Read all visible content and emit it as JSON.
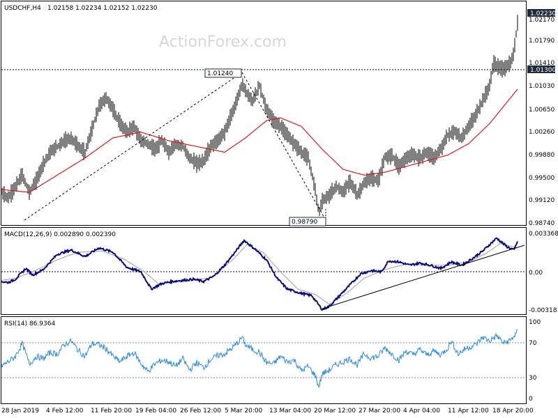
{
  "header": {
    "symbol": "USDCHF,H4",
    "ohlc": "1.02158 1.02234 1.02152 1.02230"
  },
  "watermark": "ActionForex.com",
  "colors": {
    "price": "#000000",
    "sma": "#d81b1b",
    "macd": "#0a0a78",
    "signal": "#a0a0a0",
    "rsi": "#2a8ad8",
    "level": "#1e2a3a"
  },
  "x_labels": [
    "28 Jan 2019",
    "4 Feb 12:00",
    "11 Feb 20:00",
    "19 Feb 04:00",
    "26 Feb 12:00",
    "5 Mar 20:00",
    "13 Mar 04:00",
    "20 Mar 12:00",
    "27 Mar 20:00",
    "4 Apr 04:00",
    "11 Apr 12:00",
    "18 Apr 20:00"
  ],
  "chart_data": [
    {
      "type": "line",
      "title": "USDCHF,H4",
      "y_ticks": [
        "1.02230",
        "1.02170",
        "1.01790",
        "1.01410",
        "1.01300",
        "1.01030",
        "1.00650",
        "1.00260",
        "0.99880",
        "0.99500",
        "0.99120",
        "0.98740"
      ],
      "ylim": [
        0.9874,
        1.0246
      ],
      "current_price": "1.02230",
      "horizontal_level": "1.01300",
      "annotations": [
        {
          "label": "1.01240",
          "value": 1.0124
        },
        {
          "label": "0.98790",
          "value": 0.9879
        }
      ],
      "price_anchors": [
        [
          0,
          0.9925
        ],
        [
          10,
          0.9915
        ],
        [
          20,
          0.9935
        ],
        [
          30,
          0.9955
        ],
        [
          40,
          0.9925
        ],
        [
          50,
          0.9945
        ],
        [
          60,
          0.9975
        ],
        [
          70,
          0.9995
        ],
        [
          80,
          1.0005
        ],
        [
          90,
          1.0015
        ],
        [
          100,
          1.002
        ],
        [
          110,
          1.0005
        ],
        [
          120,
          0.9995
        ],
        [
          130,
          1.0035
        ],
        [
          140,
          1.0075
        ],
        [
          150,
          1.009
        ],
        [
          160,
          1.007
        ],
        [
          170,
          1.0045
        ],
        [
          180,
          1.003
        ],
        [
          190,
          1.004
        ],
        [
          200,
          1.0015
        ],
        [
          210,
          1.001
        ],
        [
          220,
          1.0
        ],
        [
          230,
          1.0015
        ],
        [
          240,
          0.9995
        ],
        [
          250,
          1.001
        ],
        [
          260,
          1.0005
        ],
        [
          270,
          0.9985
        ],
        [
          280,
          0.9975
        ],
        [
          290,
          0.998
        ],
        [
          300,
          1.0005
        ],
        [
          310,
          1.0015
        ],
        [
          320,
          1.003
        ],
        [
          330,
          1.006
        ],
        [
          340,
          1.0095
        ],
        [
          345,
          1.0115
        ],
        [
          350,
          1.01
        ],
        [
          360,
          1.0085
        ],
        [
          370,
          1.011
        ],
        [
          380,
          1.007
        ],
        [
          390,
          1.005
        ],
        [
          400,
          1.004
        ],
        [
          410,
          1.0025
        ],
        [
          420,
          1.001
        ],
        [
          430,
          0.9995
        ],
        [
          440,
          0.9985
        ],
        [
          450,
          0.993
        ],
        [
          455,
          0.9889
        ],
        [
          460,
          0.991
        ],
        [
          470,
          0.992
        ],
        [
          480,
          0.9935
        ],
        [
          490,
          0.9925
        ],
        [
          500,
          0.9945
        ],
        [
          510,
          0.992
        ],
        [
          520,
          0.994
        ],
        [
          530,
          0.995
        ],
        [
          540,
          0.9945
        ],
        [
          550,
          0.9985
        ],
        [
          560,
          0.999
        ],
        [
          570,
          0.997
        ],
        [
          580,
          0.9985
        ],
        [
          590,
          0.999
        ],
        [
          600,
          0.9985
        ],
        [
          610,
          0.9995
        ],
        [
          620,
          0.9985
        ],
        [
          630,
          1.0
        ],
        [
          640,
          1.0025
        ],
        [
          650,
          1.003
        ],
        [
          660,
          1.002
        ],
        [
          670,
          1.004
        ],
        [
          680,
          1.006
        ],
        [
          690,
          1.0085
        ],
        [
          700,
          1.011
        ],
        [
          705,
          1.015
        ],
        [
          710,
          1.0145
        ],
        [
          720,
          1.014
        ],
        [
          730,
          1.015
        ],
        [
          735,
          1.017
        ],
        [
          740,
          1.0223
        ]
      ],
      "sma_anchors": [
        [
          0,
          0.993
        ],
        [
          40,
          0.9925
        ],
        [
          80,
          0.9955
        ],
        [
          120,
          0.9985
        ],
        [
          160,
          1.002
        ],
        [
          200,
          1.003
        ],
        [
          240,
          1.0015
        ],
        [
          280,
          1.0005
        ],
        [
          320,
          0.9995
        ],
        [
          350,
          1.002
        ],
        [
          380,
          1.005
        ],
        [
          400,
          1.0055
        ],
        [
          430,
          1.004
        ],
        [
          460,
          1.0
        ],
        [
          490,
          0.9965
        ],
        [
          520,
          0.9955
        ],
        [
          550,
          0.996
        ],
        [
          580,
          0.997
        ],
        [
          610,
          0.998
        ],
        [
          640,
          0.999
        ],
        [
          670,
          1.001
        ],
        [
          700,
          1.0045
        ],
        [
          740,
          1.0105
        ]
      ]
    },
    {
      "type": "line",
      "title": "MACD(12,26,9) 0.002890 0.002390",
      "y_ticks": [
        "0.003368",
        "0.00",
        "-0.003181"
      ],
      "ylim": [
        -0.0034,
        0.0038
      ],
      "macd_anchors": [
        [
          0,
          -0.0007
        ],
        [
          10,
          -0.0008
        ],
        [
          20,
          -0.0005
        ],
        [
          35,
          0.0005
        ],
        [
          45,
          -0.0001
        ],
        [
          60,
          0.0004
        ],
        [
          80,
          0.0018
        ],
        [
          100,
          0.0022
        ],
        [
          120,
          0.0016
        ],
        [
          140,
          0.0024
        ],
        [
          160,
          0.002
        ],
        [
          180,
          0.0006
        ],
        [
          200,
          0.0002
        ],
        [
          215,
          -0.0014
        ],
        [
          230,
          -0.0009
        ],
        [
          245,
          -0.0007
        ],
        [
          260,
          -0.0006
        ],
        [
          275,
          -0.0005
        ],
        [
          290,
          -0.0007
        ],
        [
          305,
          -0.0002
        ],
        [
          320,
          0.0008
        ],
        [
          335,
          0.002
        ],
        [
          348,
          0.0031
        ],
        [
          365,
          0.0022
        ],
        [
          380,
          0.0013
        ],
        [
          395,
          -0.0004
        ],
        [
          410,
          -0.0014
        ],
        [
          430,
          -0.0018
        ],
        [
          445,
          -0.002
        ],
        [
          460,
          -0.0033
        ],
        [
          470,
          -0.003
        ],
        [
          485,
          -0.002
        ],
        [
          500,
          -0.001
        ],
        [
          515,
          0.0
        ],
        [
          530,
          0.0003
        ],
        [
          545,
          0.0002
        ],
        [
          555,
          0.0012
        ],
        [
          570,
          0.0011
        ],
        [
          585,
          0.0008
        ],
        [
          600,
          0.001
        ],
        [
          615,
          0.0008
        ],
        [
          630,
          0.0005
        ],
        [
          645,
          0.0011
        ],
        [
          660,
          0.0008
        ],
        [
          675,
          0.0014
        ],
        [
          690,
          0.0021
        ],
        [
          710,
          0.0033
        ],
        [
          725,
          0.0025
        ],
        [
          735,
          0.0022
        ],
        [
          740,
          0.003
        ]
      ],
      "signal_anchors": [
        [
          0,
          -0.0006
        ],
        [
          20,
          -0.0004
        ],
        [
          45,
          0.0002
        ],
        [
          80,
          0.0013
        ],
        [
          110,
          0.002
        ],
        [
          145,
          0.0021
        ],
        [
          175,
          0.0014
        ],
        [
          205,
          0.0002
        ],
        [
          225,
          -0.0009
        ],
        [
          260,
          -0.0006
        ],
        [
          300,
          -0.0004
        ],
        [
          330,
          0.0012
        ],
        [
          352,
          0.0027
        ],
        [
          375,
          0.002
        ],
        [
          400,
          0.0002
        ],
        [
          425,
          -0.0014
        ],
        [
          450,
          -0.0019
        ],
        [
          470,
          -0.0028
        ],
        [
          495,
          -0.0018
        ],
        [
          520,
          -0.0004
        ],
        [
          550,
          0.0004
        ],
        [
          580,
          0.0009
        ],
        [
          610,
          0.0008
        ],
        [
          640,
          0.0008
        ],
        [
          670,
          0.0011
        ],
        [
          695,
          0.0019
        ],
        [
          715,
          0.0028
        ],
        [
          740,
          0.0024
        ]
      ],
      "trendline": "rising from 20 Mar low",
      "series": [
        {
          "name": "MACD"
        },
        {
          "name": "Signal"
        }
      ]
    },
    {
      "type": "line",
      "title": "RSI(14) 86.9364",
      "y_ticks": [
        "100",
        "70",
        "30",
        "0"
      ],
      "ylim": [
        0,
        100
      ],
      "levels": [
        70,
        30
      ],
      "rsi_anchors": [
        [
          0,
          42
        ],
        [
          10,
          48
        ],
        [
          20,
          55
        ],
        [
          30,
          72
        ],
        [
          40,
          45
        ],
        [
          50,
          55
        ],
        [
          60,
          52
        ],
        [
          70,
          60
        ],
        [
          80,
          58
        ],
        [
          90,
          70
        ],
        [
          100,
          75
        ],
        [
          110,
          63
        ],
        [
          120,
          55
        ],
        [
          130,
          72
        ],
        [
          140,
          70
        ],
        [
          150,
          65
        ],
        [
          160,
          55
        ],
        [
          170,
          48
        ],
        [
          180,
          55
        ],
        [
          190,
          60
        ],
        [
          200,
          46
        ],
        [
          210,
          35
        ],
        [
          220,
          45
        ],
        [
          230,
          50
        ],
        [
          240,
          48
        ],
        [
          250,
          42
        ],
        [
          260,
          52
        ],
        [
          270,
          37
        ],
        [
          280,
          47
        ],
        [
          290,
          40
        ],
        [
          300,
          51
        ],
        [
          310,
          56
        ],
        [
          320,
          58
        ],
        [
          330,
          65
        ],
        [
          340,
          74
        ],
        [
          345,
          80
        ],
        [
          350,
          70
        ],
        [
          360,
          64
        ],
        [
          370,
          60
        ],
        [
          380,
          47
        ],
        [
          390,
          45
        ],
        [
          400,
          55
        ],
        [
          410,
          48
        ],
        [
          420,
          50
        ],
        [
          430,
          36
        ],
        [
          440,
          42
        ],
        [
          450,
          30
        ],
        [
          455,
          15
        ],
        [
          460,
          32
        ],
        [
          470,
          37
        ],
        [
          480,
          44
        ],
        [
          490,
          48
        ],
        [
          500,
          52
        ],
        [
          510,
          44
        ],
        [
          520,
          58
        ],
        [
          530,
          53
        ],
        [
          540,
          55
        ],
        [
          550,
          66
        ],
        [
          560,
          58
        ],
        [
          570,
          50
        ],
        [
          580,
          62
        ],
        [
          590,
          57
        ],
        [
          600,
          64
        ],
        [
          610,
          57
        ],
        [
          620,
          62
        ],
        [
          630,
          57
        ],
        [
          640,
          66
        ],
        [
          645,
          75
        ],
        [
          655,
          58
        ],
        [
          665,
          65
        ],
        [
          680,
          70
        ],
        [
          690,
          80
        ],
        [
          700,
          75
        ],
        [
          710,
          82
        ],
        [
          720,
          72
        ],
        [
          730,
          76
        ],
        [
          740,
          87
        ]
      ]
    }
  ]
}
